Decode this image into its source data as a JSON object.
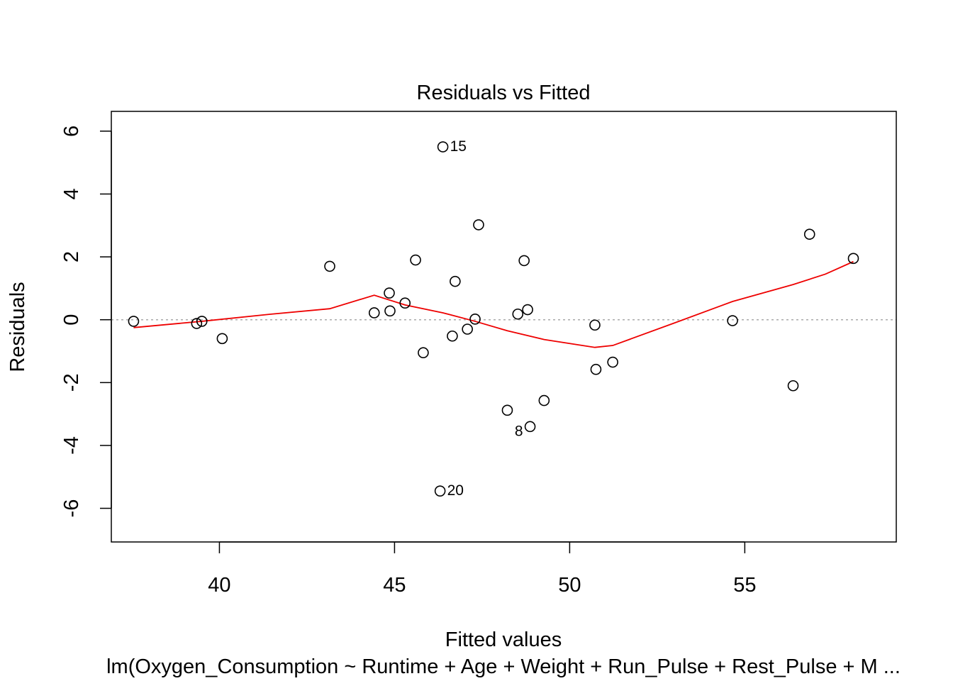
{
  "chart_data": {
    "type": "scatter",
    "title": "Residuals vs Fitted",
    "xlabel": "Fitted values",
    "ylabel": "Residuals",
    "subtitle": "lm(Oxygen_Consumption ~ Runtime + Age + Weight + Run_Pulse + Rest_Pulse + M ...",
    "xlim": [
      36.6,
      58.9
    ],
    "ylim": [
      -6.8,
      6.9
    ],
    "xticks": [
      40,
      45,
      50,
      55
    ],
    "yticks": [
      -6,
      -4,
      -2,
      0,
      2,
      4,
      6
    ],
    "grid": false,
    "reference_line": {
      "y": 0,
      "style": "dotted",
      "color": "#aaaaaa"
    },
    "points": [
      {
        "x": 37.55,
        "y": -0.05
      },
      {
        "x": 39.35,
        "y": -0.12
      },
      {
        "x": 39.5,
        "y": -0.05
      },
      {
        "x": 40.08,
        "y": -0.6
      },
      {
        "x": 43.15,
        "y": 1.7
      },
      {
        "x": 44.42,
        "y": 0.22
      },
      {
        "x": 44.85,
        "y": 0.85
      },
      {
        "x": 44.87,
        "y": 0.28
      },
      {
        "x": 45.3,
        "y": 0.53
      },
      {
        "x": 45.6,
        "y": 1.9
      },
      {
        "x": 45.82,
        "y": -1.05
      },
      {
        "x": 46.3,
        "y": -5.45,
        "label": "20"
      },
      {
        "x": 46.38,
        "y": 5.5,
        "label": "15"
      },
      {
        "x": 46.65,
        "y": -0.52
      },
      {
        "x": 46.73,
        "y": 1.22
      },
      {
        "x": 47.08,
        "y": -0.3
      },
      {
        "x": 47.3,
        "y": 0.02
      },
      {
        "x": 47.4,
        "y": 3.02
      },
      {
        "x": 48.22,
        "y": -2.88
      },
      {
        "x": 48.52,
        "y": 0.18
      },
      {
        "x": 48.7,
        "y": 1.88
      },
      {
        "x": 48.8,
        "y": 0.32
      },
      {
        "x": 48.87,
        "y": -3.4,
        "label": "8"
      },
      {
        "x": 49.27,
        "y": -2.57
      },
      {
        "x": 50.72,
        "y": -0.17
      },
      {
        "x": 50.75,
        "y": -1.58
      },
      {
        "x": 51.23,
        "y": -1.35
      },
      {
        "x": 54.65,
        "y": -0.03
      },
      {
        "x": 56.38,
        "y": -2.1
      },
      {
        "x": 56.85,
        "y": 2.72
      },
      {
        "x": 58.1,
        "y": 1.95
      }
    ],
    "smoother": {
      "color": "#ee0000",
      "x": [
        37.55,
        39.5,
        41.5,
        43.15,
        44.42,
        45.3,
        46.38,
        47.3,
        48.22,
        49.27,
        50.72,
        51.23,
        53.0,
        54.65,
        56.38,
        57.3,
        58.1
      ],
      "y": [
        -0.25,
        -0.05,
        0.18,
        0.35,
        0.78,
        0.47,
        0.22,
        -0.05,
        -0.35,
        -0.63,
        -0.88,
        -0.82,
        -0.1,
        0.58,
        1.12,
        1.45,
        1.85
      ]
    }
  }
}
